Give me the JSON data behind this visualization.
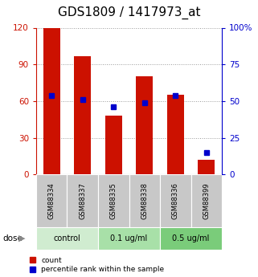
{
  "title": "GDS1809 / 1417973_at",
  "samples": [
    "GSM88334",
    "GSM88337",
    "GSM88335",
    "GSM88338",
    "GSM88336",
    "GSM88399"
  ],
  "counts": [
    120,
    97,
    48,
    80,
    65,
    12
  ],
  "percentiles": [
    54,
    51,
    46,
    49,
    54,
    15
  ],
  "groups": [
    {
      "label": "control",
      "color": "#d0ecd0",
      "start": 0,
      "end": 2
    },
    {
      "label": "0.1 ug/ml",
      "color": "#a8e0a8",
      "start": 2,
      "end": 4
    },
    {
      "label": "0.5 ug/ml",
      "color": "#7acc7a",
      "start": 4,
      "end": 6
    }
  ],
  "left_ylim": [
    0,
    120
  ],
  "right_ylim": [
    0,
    100
  ],
  "left_yticks": [
    0,
    30,
    60,
    90,
    120
  ],
  "right_yticks": [
    0,
    25,
    50,
    75,
    100
  ],
  "right_yticklabels": [
    "0",
    "25",
    "50",
    "75",
    "100%"
  ],
  "bar_color": "#cc1100",
  "marker_color": "#0000cc",
  "bg_color": "#ffffff",
  "grid_color": "#999999",
  "sample_label_bg": "#c8c8c8",
  "title_fontsize": 11,
  "axis_color_left": "#cc1100",
  "axis_color_right": "#0000cc",
  "bar_width": 0.55,
  "marker_size": 5
}
